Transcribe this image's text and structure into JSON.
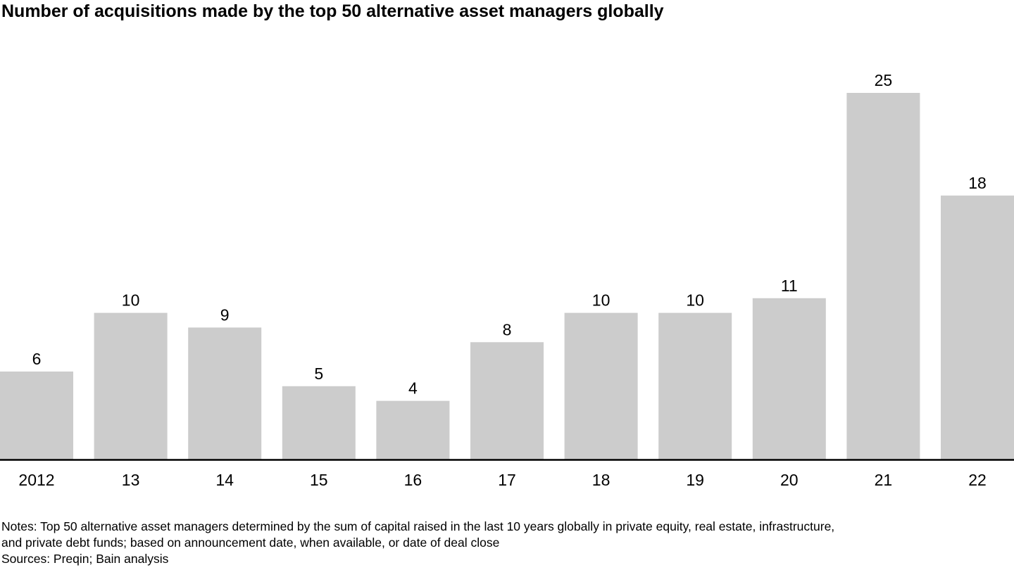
{
  "title": "Number of acquisitions made by the top 50 alternative asset managers globally",
  "colors": {
    "bar": "#cccccc",
    "axis": "#000000",
    "text": "#000000"
  },
  "chart_data": {
    "type": "bar",
    "title": "Number of acquisitions made by the top 50 alternative asset managers globally",
    "categories": [
      "2012",
      "13",
      "14",
      "15",
      "16",
      "17",
      "18",
      "19",
      "20",
      "21",
      "22"
    ],
    "values": [
      6,
      10,
      9,
      5,
      4,
      8,
      10,
      10,
      11,
      25,
      18
    ],
    "data_labels": [
      "6",
      "10",
      "9",
      "5",
      "4",
      "8",
      "10",
      "10",
      "11",
      "25",
      "18"
    ],
    "xlabel": "",
    "ylabel": "",
    "ylim": [
      0,
      25
    ],
    "grid": false,
    "legend": "none"
  },
  "notes": {
    "line1": "Notes: Top 50 alternative asset managers determined by the sum of capital raised in the last 10 years globally in private equity, real estate, infrastructure,",
    "line2": "and private debt funds; based on announcement date, when available, or date of deal close",
    "sources": "Sources: Preqin; Bain analysis"
  }
}
